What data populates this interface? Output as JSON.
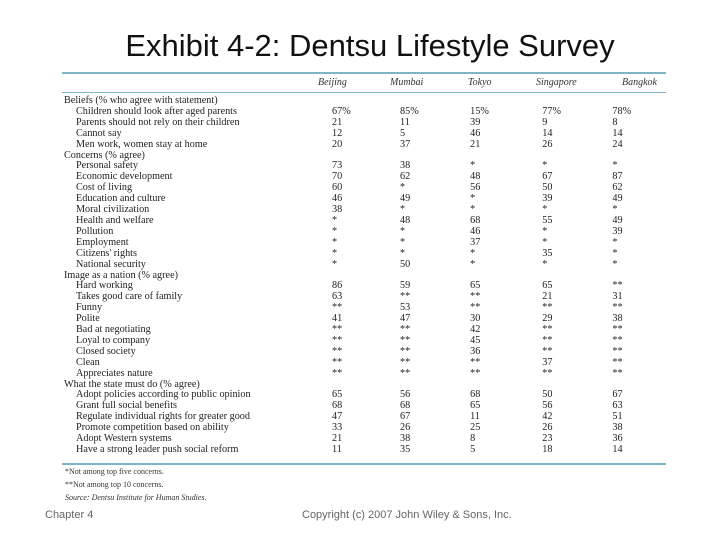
{
  "title": "Exhibit 4-2: Dentsu Lifestyle Survey",
  "columns": [
    "Beijing",
    "Mumbai",
    "Tokyo",
    "Singapore",
    "Bangkok"
  ],
  "rows": [
    {
      "label": "Beliefs (% who agree with statement)",
      "type": "section",
      "values": []
    },
    {
      "label": "Children should look after aged parents",
      "type": "item",
      "values": [
        "67%",
        "85%",
        "15%",
        "77%",
        "78%"
      ]
    },
    {
      "label": "Parents should not rely on their children",
      "type": "item",
      "values": [
        "21",
        "11",
        "39",
        "9",
        "8"
      ]
    },
    {
      "label": "Cannot say",
      "type": "item",
      "values": [
        "12",
        "5",
        "46",
        "14",
        "14"
      ]
    },
    {
      "label": "Men work, women stay at home",
      "type": "item",
      "values": [
        "20",
        "37",
        "21",
        "26",
        "24"
      ]
    },
    {
      "label": "Concerns (% agree)",
      "type": "section",
      "values": []
    },
    {
      "label": "Personal safety",
      "type": "item",
      "values": [
        "73",
        "38",
        "*",
        "*",
        "*"
      ]
    },
    {
      "label": "Economic development",
      "type": "item",
      "values": [
        "70",
        "62",
        "48",
        "67",
        "87"
      ]
    },
    {
      "label": "Cost of living",
      "type": "item",
      "values": [
        "60",
        "*",
        "56",
        "50",
        "62"
      ]
    },
    {
      "label": "Education and culture",
      "type": "item",
      "values": [
        "46",
        "49",
        "*",
        "39",
        "49"
      ]
    },
    {
      "label": "Moral civilization",
      "type": "item",
      "values": [
        "38",
        "*",
        "*",
        "*",
        "*"
      ]
    },
    {
      "label": "Health and welfare",
      "type": "item",
      "values": [
        "*",
        "48",
        "68",
        "55",
        "49"
      ]
    },
    {
      "label": "Pollution",
      "type": "item",
      "values": [
        "*",
        "*",
        "46",
        "*",
        "39"
      ]
    },
    {
      "label": "Employment",
      "type": "item",
      "values": [
        "*",
        "*",
        "37",
        "*",
        "*"
      ]
    },
    {
      "label": "Citizens' rights",
      "type": "item",
      "values": [
        "*",
        "*",
        "*",
        "35",
        "*"
      ]
    },
    {
      "label": "National security",
      "type": "item",
      "values": [
        "*",
        "50",
        "*",
        "*",
        "*"
      ]
    },
    {
      "label": "Image as a nation (% agree)",
      "type": "section",
      "values": []
    },
    {
      "label": "Hard working",
      "type": "item",
      "values": [
        "86",
        "59",
        "65",
        "65",
        "**"
      ]
    },
    {
      "label": "Takes good care of family",
      "type": "item",
      "values": [
        "63",
        "**",
        "**",
        "21",
        "31"
      ]
    },
    {
      "label": "Funny",
      "type": "item",
      "values": [
        "**",
        "53",
        "**",
        "**",
        "**"
      ]
    },
    {
      "label": "Polite",
      "type": "item",
      "values": [
        "41",
        "47",
        "30",
        "29",
        "38"
      ]
    },
    {
      "label": "Bad at negotiating",
      "type": "item",
      "values": [
        "**",
        "**",
        "42",
        "**",
        "**"
      ]
    },
    {
      "label": "Loyal to company",
      "type": "item",
      "values": [
        "**",
        "**",
        "45",
        "**",
        "**"
      ]
    },
    {
      "label": "Closed society",
      "type": "item",
      "values": [
        "**",
        "**",
        "36",
        "**",
        "**"
      ]
    },
    {
      "label": "Clean",
      "type": "item",
      "values": [
        "**",
        "**",
        "**",
        "37",
        "**"
      ]
    },
    {
      "label": "Appreciates nature",
      "type": "item",
      "values": [
        "**",
        "**",
        "**",
        "**",
        "**"
      ]
    },
    {
      "label": "What the state must do (% agree)",
      "type": "section",
      "values": []
    },
    {
      "label": "Adopt policies according to public opinion",
      "type": "item",
      "values": [
        "65",
        "56",
        "68",
        "50",
        "67"
      ]
    },
    {
      "label": "Grant full social benefits",
      "type": "item",
      "values": [
        "68",
        "68",
        "65",
        "56",
        "63"
      ]
    },
    {
      "label": "Regulate individual rights for greater good",
      "type": "item",
      "values": [
        "47",
        "67",
        "11",
        "42",
        "51"
      ]
    },
    {
      "label": "Promote competition based on ability",
      "type": "item",
      "values": [
        "33",
        "26",
        "25",
        "26",
        "38"
      ]
    },
    {
      "label": "Adopt Western systems",
      "type": "item",
      "values": [
        "21",
        "38",
        "8",
        "23",
        "36"
      ]
    },
    {
      "label": "Have a strong leader push social reform",
      "type": "item",
      "values": [
        "11",
        "35",
        "5",
        "18",
        "14"
      ]
    }
  ],
  "footnotes": {
    "single_star": "*Not among top five concerns.",
    "double_star": "**Not among top 10 concerns.",
    "source": "Source: Dentsu Institute for Human Studies."
  },
  "footer": {
    "left": "Chapter 4",
    "center": "Copyright (c) 2007 John Wiley & Sons, Inc."
  }
}
